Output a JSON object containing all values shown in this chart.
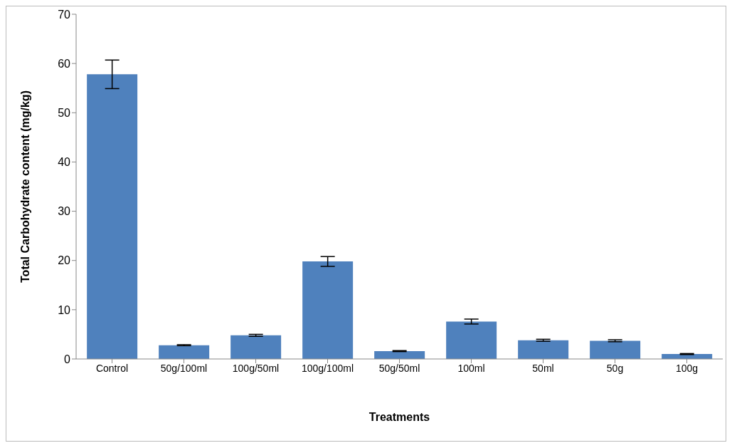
{
  "chart_data": {
    "type": "bar",
    "xlabel": "Treatments",
    "ylabel": "Total Carbohydrate content (mg/kg)",
    "categories": [
      "Control",
      "50g/100ml",
      "100g/50ml",
      "100g/100ml",
      "50g/50ml",
      "100ml",
      "50ml",
      "50g",
      "100g"
    ],
    "values": [
      57.8,
      2.8,
      4.8,
      19.8,
      1.6,
      7.6,
      3.8,
      3.7,
      1.0
    ],
    "errors": [
      2.9,
      0.1,
      0.2,
      1.0,
      0.1,
      0.5,
      0.2,
      0.2,
      0.1
    ],
    "color": "#4f81bd",
    "ylim": [
      0,
      70
    ],
    "yticks": [
      0,
      10,
      20,
      30,
      40,
      50,
      60,
      70
    ],
    "grid": false,
    "legend": false
  }
}
